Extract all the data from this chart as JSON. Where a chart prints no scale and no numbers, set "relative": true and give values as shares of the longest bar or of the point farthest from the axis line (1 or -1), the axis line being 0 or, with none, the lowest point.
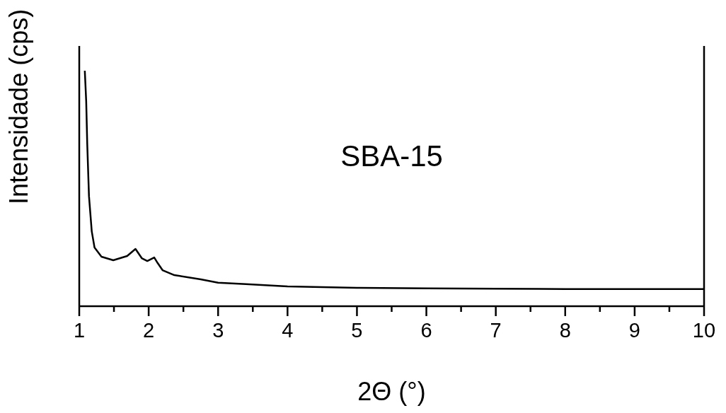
{
  "chart_data": {
    "type": "line",
    "relative": true,
    "xlabel": "2Θ (°)",
    "ylabel": "Intensidade (cps)",
    "annotations": [
      "SBA-15"
    ],
    "xlim": [
      1,
      10
    ],
    "xticks": [
      1,
      {
        "value": 1.5,
        "label": null
      },
      2,
      {
        "value": 2.5,
        "label": null
      },
      3,
      {
        "value": 3.5,
        "label": null
      },
      4,
      {
        "value": 4.5,
        "label": null
      },
      5,
      {
        "value": 5.5,
        "label": null
      },
      6,
      {
        "value": 6.5,
        "label": null
      },
      7,
      {
        "value": 7.5,
        "label": null
      },
      8,
      {
        "value": 8.5,
        "label": null
      },
      9,
      {
        "value": 9.5,
        "label": null
      },
      10
    ],
    "x": [
      1.08,
      1.1,
      1.115,
      1.14,
      1.18,
      1.22,
      1.32,
      1.49,
      1.69,
      1.81,
      1.9,
      1.98,
      2.08,
      2.13,
      2.2,
      2.37,
      2.75,
      3.0,
      3.4,
      4.0,
      5.0,
      6.0,
      7.0,
      8.0,
      9.0,
      10.0
    ],
    "series": [
      {
        "color": "#000000",
        "values": [
          1.0,
          0.871,
          0.69,
          0.468,
          0.318,
          0.249,
          0.21,
          0.195,
          0.213,
          0.243,
          0.204,
          0.192,
          0.207,
          0.183,
          0.153,
          0.132,
          0.114,
          0.1,
          0.094,
          0.084,
          0.078,
          0.076,
          0.074,
          0.073,
          0.073,
          0.073
        ]
      }
    ],
    "marker": "none",
    "line_style": "solid"
  }
}
